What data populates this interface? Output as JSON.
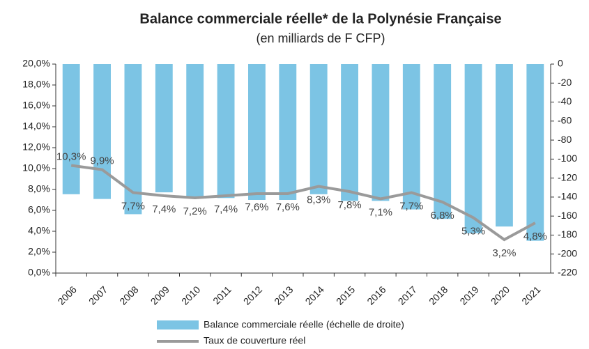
{
  "chart_data": {
    "type": "bar-line",
    "title": "Balance commerciale réelle* de la Polynésie Française",
    "subtitle": "(en milliards de F CFP)",
    "categories": [
      "2006",
      "2007",
      "2008",
      "2009",
      "2010",
      "2011",
      "2012",
      "2013",
      "2014",
      "2015",
      "2016",
      "2017",
      "2018",
      "2019",
      "2020",
      "2021"
    ],
    "series": [
      {
        "name": "Balance commerciale réelle (échelle de droite)",
        "type": "bar",
        "axis": "y2",
        "color": "#7cc4e4",
        "values": [
          -137,
          -142,
          -158,
          -135,
          -140,
          -141,
          -143,
          -143,
          -137,
          -144,
          -144,
          -153,
          -163,
          -178,
          -171,
          -186
        ]
      },
      {
        "name": "Taux de couverture réel",
        "type": "line",
        "color": "#9a9a9a",
        "values": [
          10.3,
          9.9,
          7.7,
          7.4,
          7.2,
          7.4,
          7.6,
          7.6,
          8.3,
          7.8,
          7.1,
          7.7,
          6.8,
          5.3,
          3.2,
          4.8
        ],
        "value_labels": [
          "10,3%",
          "9,9%",
          "7,7%",
          "7,4%",
          "7,2%",
          "7,4%",
          "7,6%",
          "7,6%",
          "8,3%",
          "7,8%",
          "7,1%",
          "7,7%",
          "6,8%",
          "5,3%",
          "3,2%",
          "4,8%"
        ]
      }
    ],
    "ylim": [
      0,
      20
    ],
    "yticks": [
      {
        "value": 0,
        "label": "0,0%"
      },
      {
        "value": 2,
        "label": "2,0%"
      },
      {
        "value": 4,
        "label": "4,0%"
      },
      {
        "value": 6,
        "label": "6,0%"
      },
      {
        "value": 8,
        "label": "8,0%"
      },
      {
        "value": 10,
        "label": "10,0%"
      },
      {
        "value": 12,
        "label": "12,0%"
      },
      {
        "value": 14,
        "label": "14,0%"
      },
      {
        "value": 16,
        "label": "16,0%"
      },
      {
        "value": 18,
        "label": "18,0%"
      },
      {
        "value": 20,
        "label": "20,0%"
      }
    ],
    "y2lim": [
      -220,
      0
    ],
    "y2ticks": [
      0,
      -20,
      -40,
      -60,
      -80,
      -100,
      -120,
      -140,
      -160,
      -180,
      -200,
      -220
    ]
  }
}
